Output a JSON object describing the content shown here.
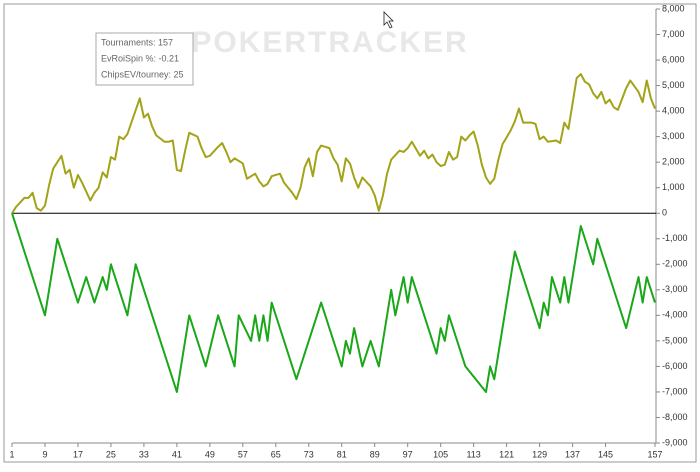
{
  "chart_data": {
    "type": "line",
    "annotations": [
      "Tournaments: 157",
      "EvRoiSpin %: -0.21",
      "ChipsEV/tourney: 25"
    ],
    "watermark": "POKERTRACKER",
    "xlim": [
      1,
      157
    ],
    "xticks": [
      1,
      9,
      17,
      25,
      33,
      41,
      49,
      57,
      65,
      73,
      81,
      89,
      97,
      105,
      113,
      121,
      129,
      137,
      145,
      157
    ],
    "ylim": [
      -9000,
      8000
    ],
    "yticks": [
      {
        "value": 8000,
        "label": "8,000"
      },
      {
        "value": 7000,
        "label": "7,000"
      },
      {
        "value": 6000,
        "label": "6,000"
      },
      {
        "value": 5000,
        "label": "5,000"
      },
      {
        "value": 4000,
        "label": "4,000"
      },
      {
        "value": 3000,
        "label": "3,000"
      },
      {
        "value": 2000,
        "label": "2,000"
      },
      {
        "value": 1000,
        "label": "1,000"
      },
      0,
      {
        "value": -1000,
        "label": "-1,000"
      },
      {
        "value": -2000,
        "label": "-2,000"
      },
      {
        "value": -3000,
        "label": "-3,000"
      },
      {
        "value": -4000,
        "label": "-4,000"
      },
      {
        "value": -5000,
        "label": "-5,000"
      },
      {
        "value": -6000,
        "label": "-6,000"
      },
      {
        "value": -7000,
        "label": "-7,000"
      },
      {
        "value": -8000,
        "label": "-8,000"
      },
      {
        "value": -9000,
        "label": "-9,000"
      }
    ],
    "series": [
      {
        "color": "#a3a31a",
        "x": [
          1,
          2,
          4,
          5,
          6,
          7,
          8,
          9,
          10,
          11,
          13,
          14,
          15,
          16,
          17,
          18,
          20,
          21,
          22,
          23,
          24,
          25,
          26,
          27,
          28,
          29,
          32,
          33,
          34,
          35,
          36,
          38,
          39,
          40,
          41,
          42,
          43,
          44,
          46,
          47,
          48,
          49,
          51,
          52,
          53,
          54,
          55,
          57,
          58,
          60,
          61,
          62,
          63,
          64,
          66,
          67,
          68,
          69,
          70,
          71,
          72,
          73,
          74,
          75,
          76,
          78,
          79,
          80,
          81,
          82,
          83,
          84,
          85,
          86,
          88,
          89,
          90,
          91,
          92,
          93,
          95,
          96,
          97,
          98,
          100,
          101,
          102,
          103,
          104,
          105,
          106,
          107,
          108,
          109,
          110,
          111,
          112,
          113,
          114,
          115,
          116,
          117,
          118,
          119,
          120,
          122,
          123,
          124,
          125,
          127,
          128,
          129,
          130,
          131,
          133,
          134,
          135,
          136,
          137,
          138,
          139,
          140,
          141,
          142,
          143,
          144,
          145,
          146,
          147,
          148,
          150,
          151,
          153,
          154,
          155,
          156,
          157
        ],
        "values": [
          0,
          250,
          600,
          600,
          800,
          200,
          100,
          300,
          1100,
          1750,
          2250,
          1550,
          1700,
          1000,
          1500,
          1200,
          500,
          800,
          1000,
          1600,
          1400,
          2200,
          2100,
          3000,
          2900,
          3100,
          4500,
          3750,
          3900,
          3400,
          3050,
          2800,
          2800,
          2850,
          1700,
          1650,
          2450,
          3150,
          3000,
          2550,
          2200,
          2250,
          2600,
          2750,
          2400,
          2000,
          2150,
          1950,
          1350,
          1550,
          1250,
          1050,
          1150,
          1450,
          1550,
          1200,
          1000,
          800,
          550,
          1000,
          1800,
          2150,
          1450,
          2400,
          2650,
          2550,
          2150,
          1900,
          1250,
          2150,
          1950,
          1400,
          1000,
          1400,
          1050,
          700,
          100,
          700,
          1550,
          2100,
          2450,
          2400,
          2550,
          2800,
          2250,
          2450,
          2150,
          2300,
          2000,
          1850,
          1900,
          2400,
          2100,
          2200,
          3000,
          2850,
          3050,
          3200,
          2650,
          1900,
          1400,
          1150,
          1350,
          2100,
          2700,
          3250,
          3600,
          4100,
          3550,
          3550,
          3500,
          2900,
          3000,
          2800,
          2850,
          2750,
          3550,
          3300,
          4300,
          5300,
          5450,
          5150,
          5050,
          4700,
          4500,
          4750,
          4300,
          4450,
          4150,
          4050,
          4900,
          5200,
          4750,
          4350,
          5200,
          4500,
          4100
        ]
      },
      {
        "color": "#1aa81a",
        "x": [
          1,
          9,
          12,
          17,
          19,
          21,
          23,
          24,
          25,
          29,
          31,
          41,
          44,
          48,
          51,
          55,
          56,
          59,
          60,
          61,
          62,
          63,
          64,
          70,
          76,
          81,
          82,
          83,
          84,
          86,
          88,
          90,
          93,
          94,
          96,
          97,
          98,
          104,
          105,
          106,
          107,
          111,
          116,
          117,
          118,
          123,
          129,
          130,
          131,
          132,
          134,
          135,
          136,
          139,
          142,
          143,
          150,
          153,
          154,
          155,
          157
        ],
        "values": [
          0,
          -4000,
          -1000,
          -3500,
          -2500,
          -3500,
          -2500,
          -3000,
          -2000,
          -4000,
          -2000,
          -7000,
          -4000,
          -6000,
          -4000,
          -6000,
          -4000,
          -5000,
          -4000,
          -5000,
          -4000,
          -5000,
          -3500,
          -6500,
          -3500,
          -6000,
          -5000,
          -5500,
          -4500,
          -6000,
          -5000,
          -6000,
          -3000,
          -4000,
          -2500,
          -3500,
          -2500,
          -5500,
          -4500,
          -5000,
          -4000,
          -6000,
          -7000,
          -6000,
          -6500,
          -1500,
          -4500,
          -3500,
          -4000,
          -2500,
          -3500,
          -2500,
          -3500,
          -500,
          -2000,
          -1000,
          -4500,
          -2500,
          -3500,
          -2500,
          -3500
        ]
      }
    ]
  }
}
